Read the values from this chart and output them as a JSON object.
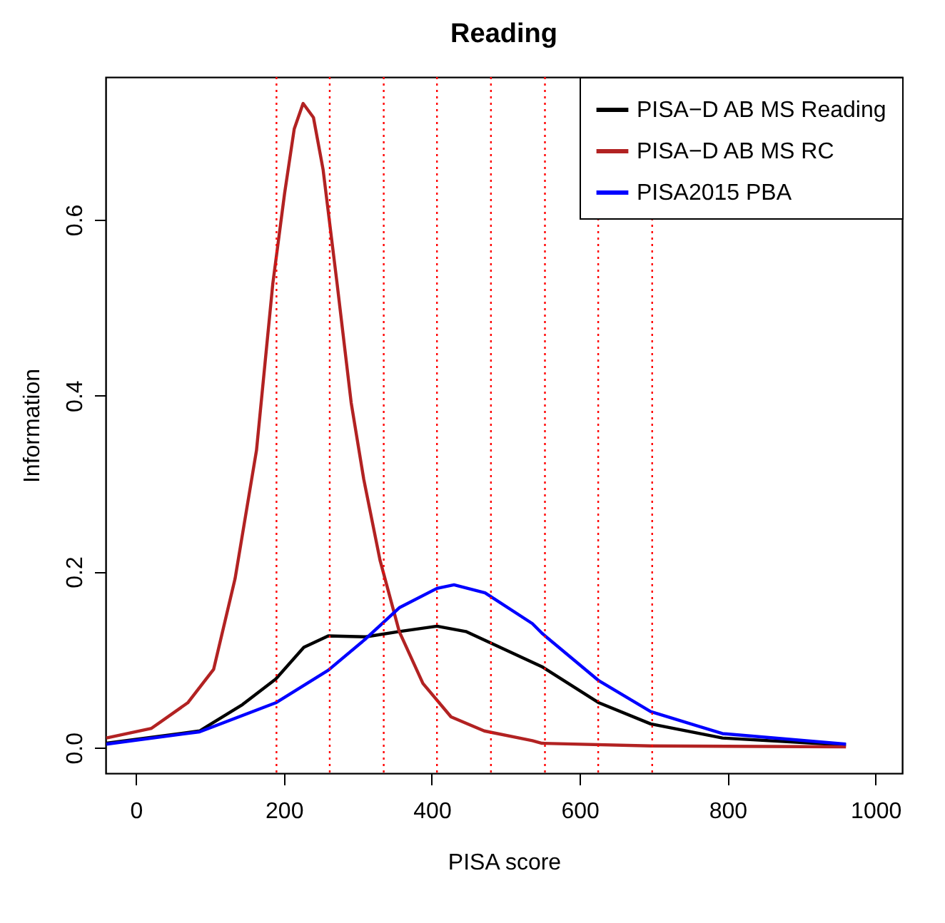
{
  "chart_data": {
    "type": "line",
    "title": "Reading",
    "xlabel": "PISA score",
    "ylabel": "Information",
    "xlim": [
      -41,
      1036
    ],
    "ylim": [
      -0.029,
      0.762
    ],
    "xticks": [
      0,
      200,
      400,
      600,
      800,
      1000
    ],
    "yticks": [
      {
        "value": 0,
        "label": "0.0"
      },
      0.2,
      0.4,
      0.6
    ],
    "grid": false,
    "legend": "top right",
    "series": [
      {
        "name": "PISA−D AB MS Reading",
        "color": "#000000",
        "x": [
          -40,
          86,
          144,
          189,
          227,
          260,
          311,
          356,
          407,
          446,
          536,
          549,
          626,
          696,
          793,
          960
        ],
        "values": [
          0.005,
          0.019,
          0.049,
          0.078,
          0.114,
          0.127,
          0.126,
          0.132,
          0.138,
          0.132,
          0.097,
          0.092,
          0.051,
          0.027,
          0.011,
          0.003
        ]
      },
      {
        "name": "PISA−D AB MS RC",
        "color": "#b22222",
        "x": [
          -40,
          21,
          70,
          105,
          134,
          163,
          185,
          201,
          214,
          226,
          240,
          253,
          272,
          291,
          308,
          330,
          356,
          388,
          426,
          471,
          536,
          549,
          696,
          960
        ],
        "values": [
          0.011,
          0.022,
          0.051,
          0.089,
          0.192,
          0.338,
          0.527,
          0.63,
          0.703,
          0.732,
          0.716,
          0.657,
          0.527,
          0.392,
          0.305,
          0.213,
          0.132,
          0.073,
          0.035,
          0.019,
          0.008,
          0.005,
          0.002,
          0.001
        ]
      },
      {
        "name": "PISA2015 PBA",
        "color": "#0000ff",
        "x": [
          -40,
          86,
          189,
          260,
          311,
          356,
          407,
          430,
          472,
          536,
          549,
          626,
          696,
          793,
          960
        ],
        "values": [
          0.004,
          0.018,
          0.051,
          0.088,
          0.124,
          0.159,
          0.181,
          0.185,
          0.176,
          0.141,
          0.13,
          0.076,
          0.041,
          0.016,
          0.004
        ]
      }
    ],
    "ref_lines": [
      {
        "axis": "x",
        "value": 190,
        "color": "#ff0000",
        "line_style": "dotted"
      },
      {
        "axis": "x",
        "value": 262,
        "color": "#ff0000",
        "line_style": "dotted"
      },
      {
        "axis": "x",
        "value": 335,
        "color": "#ff0000",
        "line_style": "dotted"
      },
      {
        "axis": "x",
        "value": 407,
        "color": "#ff0000",
        "line_style": "dotted"
      },
      {
        "axis": "x",
        "value": 480,
        "color": "#ff0000",
        "line_style": "dotted"
      },
      {
        "axis": "x",
        "value": 553,
        "color": "#ff0000",
        "line_style": "dotted"
      },
      {
        "axis": "x",
        "value": 625,
        "color": "#ff0000",
        "line_style": "dotted"
      },
      {
        "axis": "x",
        "value": 698,
        "color": "#ff0000",
        "line_style": "dotted"
      }
    ]
  }
}
